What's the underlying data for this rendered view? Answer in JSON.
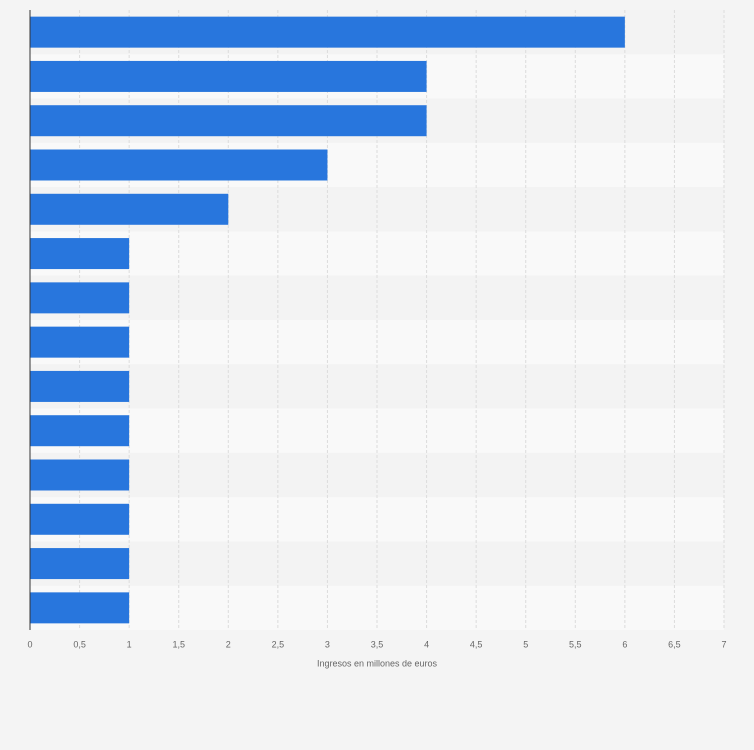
{
  "chart_data": {
    "type": "bar",
    "orientation": "horizontal",
    "categories": [
      null,
      null,
      null,
      null,
      null,
      null,
      null,
      null,
      null,
      null,
      null,
      null,
      null,
      null
    ],
    "values": [
      6,
      4,
      4,
      3,
      2,
      1,
      1,
      1,
      1,
      1,
      1,
      1,
      1,
      1
    ],
    "color": "#2876dd",
    "x_label": "Ingresos en millones de euros",
    "xlim": [
      0,
      7
    ],
    "xticks": [
      0,
      {
        "value": 0.5,
        "label": "0,5"
      },
      1,
      {
        "value": 1.5,
        "label": "1,5"
      },
      2,
      {
        "value": 2.5,
        "label": "2,5"
      },
      3,
      {
        "value": 3.5,
        "label": "3,5"
      },
      4,
      {
        "value": 4.5,
        "label": "4,5"
      },
      5,
      {
        "value": 5.5,
        "label": "5,5"
      },
      6,
      {
        "value": 6.5,
        "label": "6,5"
      },
      7
    ],
    "grid": true
  }
}
